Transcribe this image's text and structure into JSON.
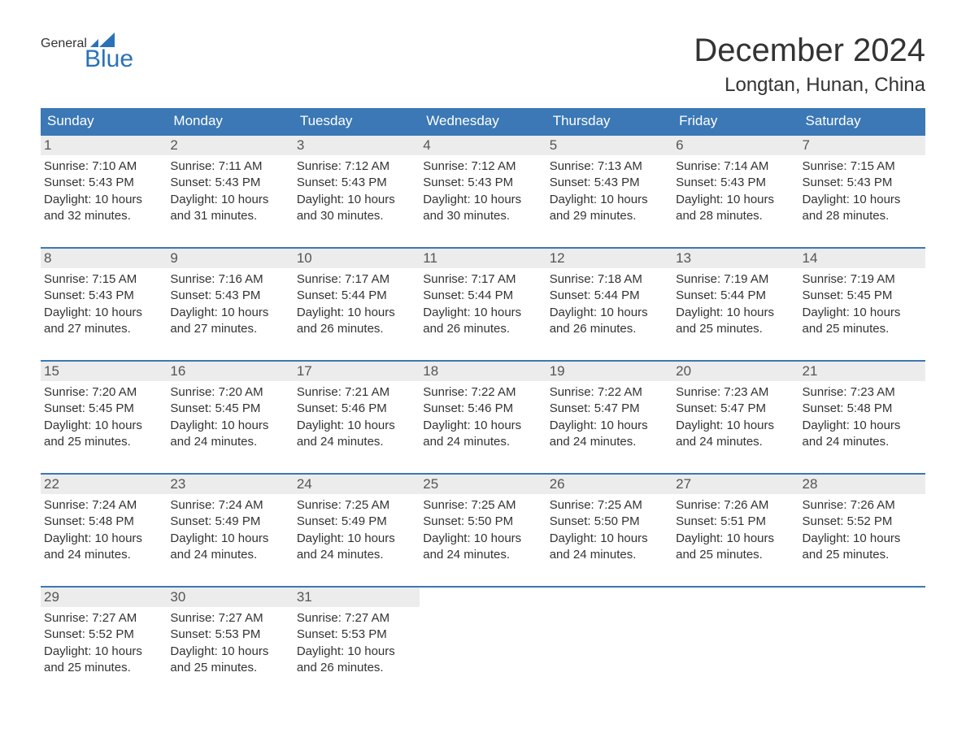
{
  "logo": {
    "text_general": "General",
    "text_blue": "Blue",
    "flag_color": "#2a71b8"
  },
  "title": "December 2024",
  "location": "Longtan, Hunan, China",
  "colors": {
    "header_bg": "#3b78b5",
    "header_text": "#ffffff",
    "daynum_bg": "#ececec",
    "daynum_text": "#555555",
    "body_text": "#333333",
    "week_border": "#3b78b5",
    "page_bg": "#ffffff"
  },
  "typography": {
    "title_fontsize": 40,
    "location_fontsize": 24,
    "dow_fontsize": 17,
    "daynum_fontsize": 17,
    "body_fontsize": 15,
    "logo_fontsize": 30
  },
  "days_of_week": [
    "Sunday",
    "Monday",
    "Tuesday",
    "Wednesday",
    "Thursday",
    "Friday",
    "Saturday"
  ],
  "labels": {
    "sunrise": "Sunrise:",
    "sunset": "Sunset:",
    "daylight": "Daylight:"
  },
  "weeks": [
    [
      {
        "n": "1",
        "sunrise": "7:10 AM",
        "sunset": "5:43 PM",
        "daylight": "10 hours and 32 minutes."
      },
      {
        "n": "2",
        "sunrise": "7:11 AM",
        "sunset": "5:43 PM",
        "daylight": "10 hours and 31 minutes."
      },
      {
        "n": "3",
        "sunrise": "7:12 AM",
        "sunset": "5:43 PM",
        "daylight": "10 hours and 30 minutes."
      },
      {
        "n": "4",
        "sunrise": "7:12 AM",
        "sunset": "5:43 PM",
        "daylight": "10 hours and 30 minutes."
      },
      {
        "n": "5",
        "sunrise": "7:13 AM",
        "sunset": "5:43 PM",
        "daylight": "10 hours and 29 minutes."
      },
      {
        "n": "6",
        "sunrise": "7:14 AM",
        "sunset": "5:43 PM",
        "daylight": "10 hours and 28 minutes."
      },
      {
        "n": "7",
        "sunrise": "7:15 AM",
        "sunset": "5:43 PM",
        "daylight": "10 hours and 28 minutes."
      }
    ],
    [
      {
        "n": "8",
        "sunrise": "7:15 AM",
        "sunset": "5:43 PM",
        "daylight": "10 hours and 27 minutes."
      },
      {
        "n": "9",
        "sunrise": "7:16 AM",
        "sunset": "5:43 PM",
        "daylight": "10 hours and 27 minutes."
      },
      {
        "n": "10",
        "sunrise": "7:17 AM",
        "sunset": "5:44 PM",
        "daylight": "10 hours and 26 minutes."
      },
      {
        "n": "11",
        "sunrise": "7:17 AM",
        "sunset": "5:44 PM",
        "daylight": "10 hours and 26 minutes."
      },
      {
        "n": "12",
        "sunrise": "7:18 AM",
        "sunset": "5:44 PM",
        "daylight": "10 hours and 26 minutes."
      },
      {
        "n": "13",
        "sunrise": "7:19 AM",
        "sunset": "5:44 PM",
        "daylight": "10 hours and 25 minutes."
      },
      {
        "n": "14",
        "sunrise": "7:19 AM",
        "sunset": "5:45 PM",
        "daylight": "10 hours and 25 minutes."
      }
    ],
    [
      {
        "n": "15",
        "sunrise": "7:20 AM",
        "sunset": "5:45 PM",
        "daylight": "10 hours and 25 minutes."
      },
      {
        "n": "16",
        "sunrise": "7:20 AM",
        "sunset": "5:45 PM",
        "daylight": "10 hours and 24 minutes."
      },
      {
        "n": "17",
        "sunrise": "7:21 AM",
        "sunset": "5:46 PM",
        "daylight": "10 hours and 24 minutes."
      },
      {
        "n": "18",
        "sunrise": "7:22 AM",
        "sunset": "5:46 PM",
        "daylight": "10 hours and 24 minutes."
      },
      {
        "n": "19",
        "sunrise": "7:22 AM",
        "sunset": "5:47 PM",
        "daylight": "10 hours and 24 minutes."
      },
      {
        "n": "20",
        "sunrise": "7:23 AM",
        "sunset": "5:47 PM",
        "daylight": "10 hours and 24 minutes."
      },
      {
        "n": "21",
        "sunrise": "7:23 AM",
        "sunset": "5:48 PM",
        "daylight": "10 hours and 24 minutes."
      }
    ],
    [
      {
        "n": "22",
        "sunrise": "7:24 AM",
        "sunset": "5:48 PM",
        "daylight": "10 hours and 24 minutes."
      },
      {
        "n": "23",
        "sunrise": "7:24 AM",
        "sunset": "5:49 PM",
        "daylight": "10 hours and 24 minutes."
      },
      {
        "n": "24",
        "sunrise": "7:25 AM",
        "sunset": "5:49 PM",
        "daylight": "10 hours and 24 minutes."
      },
      {
        "n": "25",
        "sunrise": "7:25 AM",
        "sunset": "5:50 PM",
        "daylight": "10 hours and 24 minutes."
      },
      {
        "n": "26",
        "sunrise": "7:25 AM",
        "sunset": "5:50 PM",
        "daylight": "10 hours and 24 minutes."
      },
      {
        "n": "27",
        "sunrise": "7:26 AM",
        "sunset": "5:51 PM",
        "daylight": "10 hours and 25 minutes."
      },
      {
        "n": "28",
        "sunrise": "7:26 AM",
        "sunset": "5:52 PM",
        "daylight": "10 hours and 25 minutes."
      }
    ],
    [
      {
        "n": "29",
        "sunrise": "7:27 AM",
        "sunset": "5:52 PM",
        "daylight": "10 hours and 25 minutes."
      },
      {
        "n": "30",
        "sunrise": "7:27 AM",
        "sunset": "5:53 PM",
        "daylight": "10 hours and 25 minutes."
      },
      {
        "n": "31",
        "sunrise": "7:27 AM",
        "sunset": "5:53 PM",
        "daylight": "10 hours and 26 minutes."
      },
      null,
      null,
      null,
      null
    ]
  ]
}
